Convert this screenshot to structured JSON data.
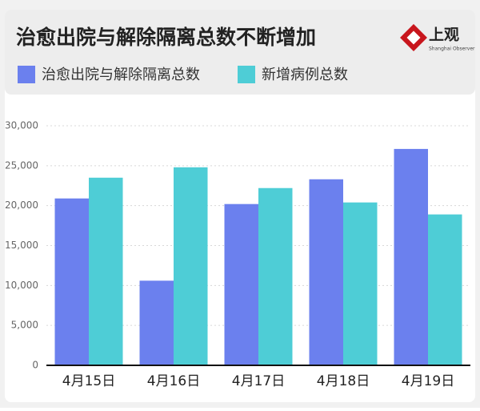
{
  "logo": {
    "name": "上观",
    "subtitle": "Shanghai Observer"
  },
  "chart_data": {
    "type": "bar",
    "title": "治愈出院与解除隔离总数不断增加",
    "categories": [
      "4月15日",
      "4月16日",
      "4月17日",
      "4月18日",
      "4月19日"
    ],
    "series": [
      {
        "name": "治愈出院与解除隔离总数",
        "color": "#6b80ee",
        "values": [
          20900,
          10600,
          20200,
          23300,
          27100
        ]
      },
      {
        "name": "新增病例总数",
        "color": "#4ecdd6",
        "values": [
          23500,
          24800,
          22200,
          20400,
          18900
        ]
      }
    ],
    "ylim": [
      0,
      30000
    ],
    "yticks": [
      0,
      {
        "value": 5000,
        "label": "5,000"
      },
      {
        "value": 10000,
        "label": "10,000"
      },
      {
        "value": 15000,
        "label": "15,000"
      },
      {
        "value": 20000,
        "label": "20,000"
      },
      {
        "value": 25000,
        "label": "25,000"
      },
      {
        "value": 30000,
        "label": "30,000"
      }
    ],
    "grid": true
  }
}
